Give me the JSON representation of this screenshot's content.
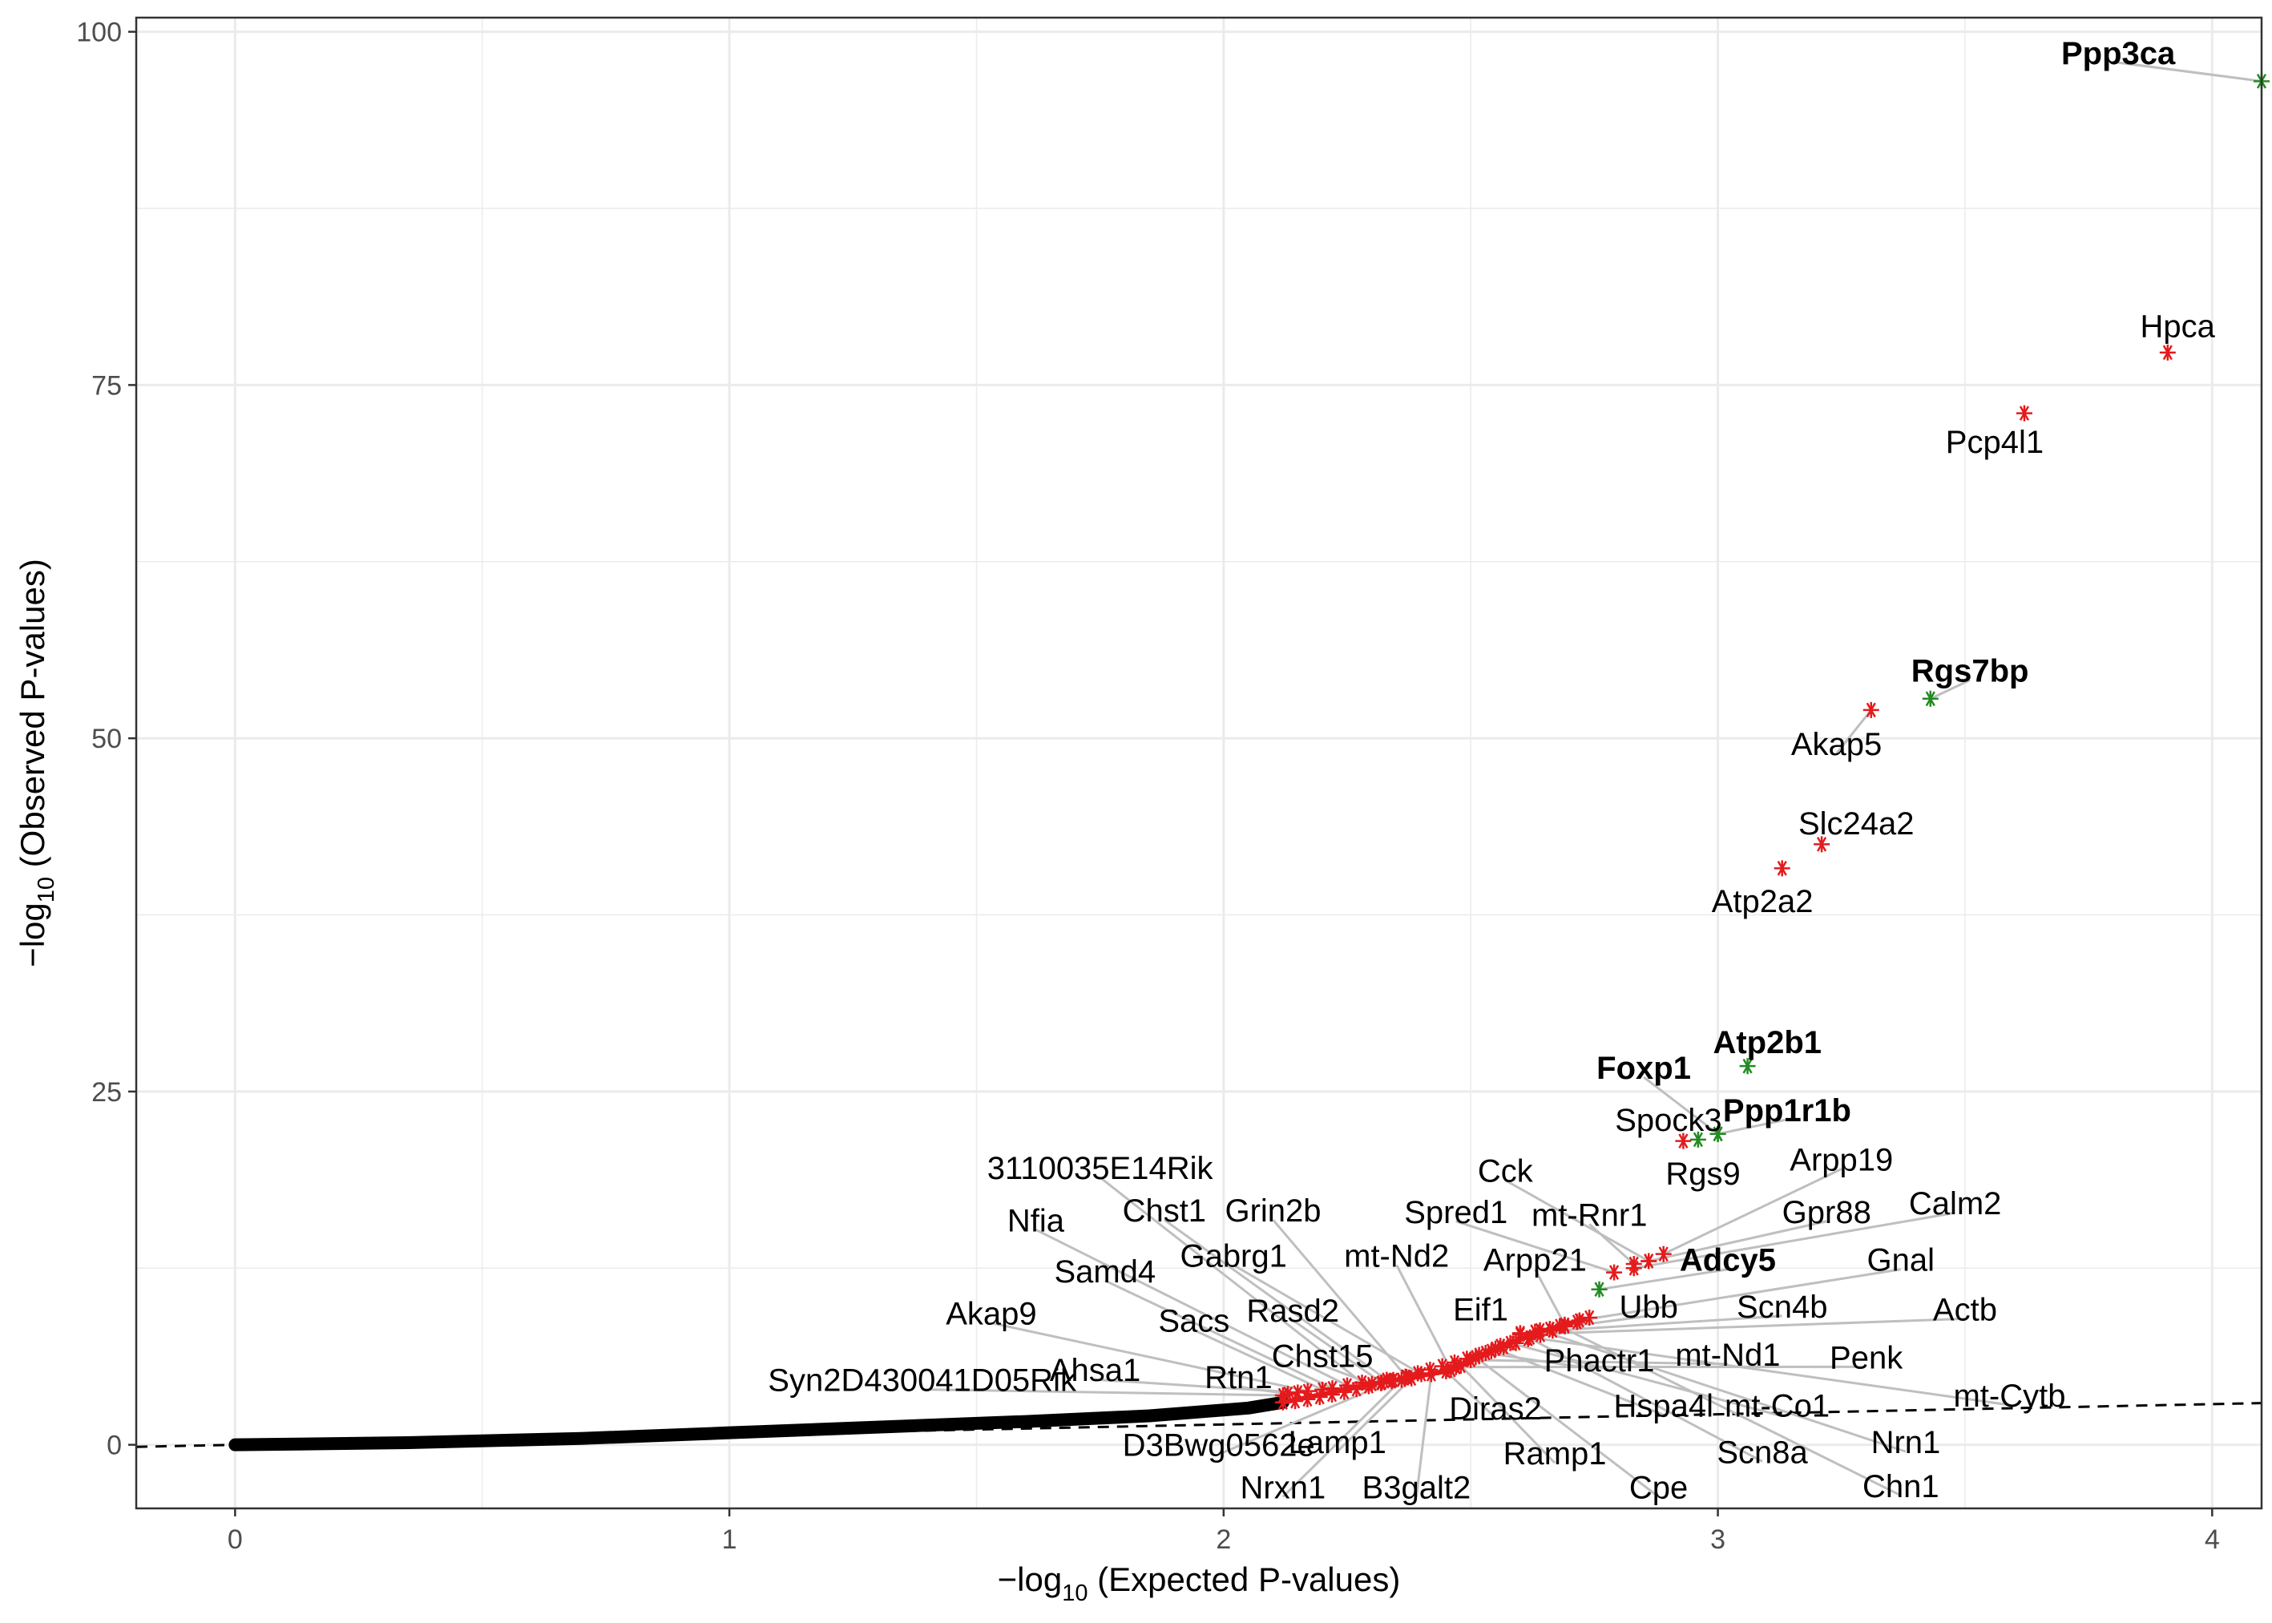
{
  "chart_data": {
    "type": "scatter",
    "title": "",
    "xlabel": {
      "prefix": "−log",
      "sub": "10",
      "suffix": " (Expected P-values)"
    },
    "ylabel": {
      "prefix": "−log",
      "sub": "10",
      "suffix": " (Observed P-values)"
    },
    "xlim": [
      -0.2,
      4.1
    ],
    "ylim": [
      -4.5,
      101
    ],
    "x_ticks": [
      0,
      1,
      2,
      3,
      4
    ],
    "y_ticks": [
      0,
      25,
      50,
      75,
      100
    ],
    "x_tick_labels": [
      "0",
      "1",
      "2",
      "3",
      "4"
    ],
    "y_tick_labels": [
      "0",
      "25",
      "50",
      "75",
      "100"
    ],
    "grid": true,
    "reference_line": {
      "style": "dashed",
      "slope": 0.72,
      "intercept": 0
    },
    "colors": {
      "background_points": "#000000",
      "highlight_points": "#e41a1c",
      "bold_points": "#228b22",
      "gridlines": "#ebebeb",
      "leader_lines": "#bfbfbf",
      "panel_border": "#333333"
    },
    "background_curve": [
      [
        0,
        0
      ],
      [
        0.35,
        0.15
      ],
      [
        0.7,
        0.45
      ],
      [
        1.0,
        0.85
      ],
      [
        1.3,
        1.25
      ],
      [
        1.6,
        1.65
      ],
      [
        1.85,
        2.05
      ],
      [
        2.05,
        2.6
      ],
      [
        2.12,
        3.0
      ]
    ],
    "genes": [
      {
        "label": "Ppp3ca",
        "x": 4.1,
        "y": 96.5,
        "color": "#228b22",
        "bold": true,
        "lx": 3.81,
        "ly": 98.5
      },
      {
        "label": "Hpca",
        "x": 3.91,
        "y": 77.3,
        "color": "#e41a1c",
        "bold": false,
        "lx": 3.93,
        "ly": 79.2
      },
      {
        "label": "Pcp4l1",
        "x": 3.62,
        "y": 73.0,
        "color": "#e41a1c",
        "bold": false,
        "lx": 3.56,
        "ly": 71.0
      },
      {
        "label": "Rgs7bp",
        "x": 3.43,
        "y": 52.8,
        "color": "#228b22",
        "bold": true,
        "lx": 3.51,
        "ly": 54.8
      },
      {
        "label": "Akap5",
        "x": 3.31,
        "y": 52.0,
        "color": "#e41a1c",
        "bold": false,
        "lx": 3.24,
        "ly": 49.6
      },
      {
        "label": "Slc24a2",
        "x": 3.21,
        "y": 42.5,
        "color": "#e41a1c",
        "bold": false,
        "lx": 3.28,
        "ly": 44.0
      },
      {
        "label": "Atp2a2",
        "x": 3.13,
        "y": 40.8,
        "color": "#e41a1c",
        "bold": false,
        "lx": 3.09,
        "ly": 38.5
      },
      {
        "label": "Atp2b1",
        "x": 3.06,
        "y": 26.8,
        "color": "#228b22",
        "bold": true,
        "lx": 3.1,
        "ly": 28.5
      },
      {
        "label": "Foxp1",
        "x": 3.0,
        "y": 22.0,
        "color": "#228b22",
        "bold": true,
        "lx": 2.85,
        "ly": 26.7
      },
      {
        "label": "Ppp1r1b",
        "x": 3.0,
        "y": 22.0,
        "color": "#228b22",
        "bold": true,
        "lx": 3.14,
        "ly": 23.7
      },
      {
        "label": "Spock3",
        "x": 2.93,
        "y": 21.5,
        "color": "#e41a1c",
        "bold": false,
        "lx": 2.9,
        "ly": 23.0
      },
      {
        "label": "Rgs9",
        "x": 2.96,
        "y": 21.6,
        "color": "#228b22",
        "bold": false,
        "lx": 2.97,
        "ly": 19.2
      },
      {
        "label": "Arpp19",
        "x": 2.89,
        "y": 13.5,
        "color": "#e41a1c",
        "bold": false,
        "lx": 3.25,
        "ly": 20.2
      },
      {
        "label": "Cck",
        "x": 2.86,
        "y": 13.0,
        "color": "#e41a1c",
        "bold": false,
        "lx": 2.57,
        "ly": 19.4
      },
      {
        "label": "mt-Rnr1",
        "x": 2.83,
        "y": 12.8,
        "color": "#e41a1c",
        "bold": false,
        "lx": 2.74,
        "ly": 16.3
      },
      {
        "label": "Gpr88",
        "x": 2.86,
        "y": 13.0,
        "color": "#e41a1c",
        "bold": false,
        "lx": 3.22,
        "ly": 16.5
      },
      {
        "label": "Calm2",
        "x": 2.83,
        "y": 12.5,
        "color": "#e41a1c",
        "bold": false,
        "lx": 3.48,
        "ly": 17.1
      },
      {
        "label": "Spred1",
        "x": 2.79,
        "y": 12.2,
        "color": "#e41a1c",
        "bold": false,
        "lx": 2.47,
        "ly": 16.5
      },
      {
        "label": "Adcy5",
        "x": 2.76,
        "y": 11.0,
        "color": "#228b22",
        "bold": true,
        "lx": 3.02,
        "ly": 13.1
      },
      {
        "label": "Gnal",
        "x": 2.72,
        "y": 8.8,
        "color": "#e41a1c",
        "bold": false,
        "lx": 3.37,
        "ly": 13.1
      },
      {
        "label": "Arpp21",
        "x": 2.69,
        "y": 8.5,
        "color": "#e41a1c",
        "bold": false,
        "lx": 2.63,
        "ly": 13.1
      },
      {
        "label": "Ubb",
        "x": 2.66,
        "y": 8.2,
        "color": "#e41a1c",
        "bold": false,
        "lx": 2.86,
        "ly": 9.8
      },
      {
        "label": "Scn4b",
        "x": 2.63,
        "y": 8.0,
        "color": "#e41a1c",
        "bold": false,
        "lx": 3.13,
        "ly": 9.8
      },
      {
        "label": "Actb",
        "x": 2.6,
        "y": 7.8,
        "color": "#e41a1c",
        "bold": false,
        "lx": 3.5,
        "ly": 9.6
      },
      {
        "label": "Eif1",
        "x": 2.56,
        "y": 7.0,
        "color": "#e41a1c",
        "bold": false,
        "lx": 2.52,
        "ly": 9.6
      },
      {
        "label": "Phactr1",
        "x": 2.53,
        "y": 6.5,
        "color": "#e41a1c",
        "bold": false,
        "lx": 2.76,
        "ly": 6.0
      },
      {
        "label": "mt-Nd1",
        "x": 2.5,
        "y": 6.0,
        "color": "#e41a1c",
        "bold": false,
        "lx": 3.02,
        "ly": 6.4
      },
      {
        "label": "Penk",
        "x": 2.47,
        "y": 5.5,
        "color": "#e41a1c",
        "bold": false,
        "lx": 3.3,
        "ly": 6.2
      },
      {
        "label": "mt-Nd2",
        "x": 2.46,
        "y": 5.3,
        "color": "#e41a1c",
        "bold": false,
        "lx": 2.35,
        "ly": 13.4
      },
      {
        "label": "Gabrg1",
        "x": 2.4,
        "y": 5.0,
        "color": "#e41a1c",
        "bold": false,
        "lx": 2.02,
        "ly": 13.4
      },
      {
        "label": "Grin2b",
        "x": 2.37,
        "y": 4.8,
        "color": "#e41a1c",
        "bold": false,
        "lx": 2.1,
        "ly": 16.6
      },
      {
        "label": "Chst1",
        "x": 2.33,
        "y": 4.6,
        "color": "#e41a1c",
        "bold": false,
        "lx": 1.88,
        "ly": 16.6
      },
      {
        "label": "3110035E14Rik",
        "x": 2.28,
        "y": 4.4,
        "color": "#e41a1c",
        "bold": false,
        "lx": 1.75,
        "ly": 19.6
      },
      {
        "label": "Nfia",
        "x": 2.25,
        "y": 4.2,
        "color": "#e41a1c",
        "bold": false,
        "lx": 1.62,
        "ly": 15.9
      },
      {
        "label": "Samd4",
        "x": 2.22,
        "y": 4.0,
        "color": "#e41a1c",
        "bold": false,
        "lx": 1.76,
        "ly": 12.3
      },
      {
        "label": "Rasd2",
        "x": 2.32,
        "y": 4.4,
        "color": "#e41a1c",
        "bold": false,
        "lx": 2.14,
        "ly": 9.5
      },
      {
        "label": "Sacs",
        "x": 2.2,
        "y": 3.9,
        "color": "#e41a1c",
        "bold": false,
        "lx": 1.94,
        "ly": 8.8
      },
      {
        "label": "Akap9",
        "x": 2.17,
        "y": 3.8,
        "color": "#e41a1c",
        "bold": false,
        "lx": 1.53,
        "ly": 9.3
      },
      {
        "label": "Chst15",
        "x": 2.3,
        "y": 4.3,
        "color": "#e41a1c",
        "bold": false,
        "lx": 2.2,
        "ly": 6.3
      },
      {
        "label": "Ahsa1",
        "x": 2.15,
        "y": 3.7,
        "color": "#e41a1c",
        "bold": false,
        "lx": 1.74,
        "ly": 5.3
      },
      {
        "label": "Rtn1",
        "x": 2.13,
        "y": 3.6,
        "color": "#e41a1c",
        "bold": false,
        "lx": 2.03,
        "ly": 4.8
      },
      {
        "label": "Syn2D430041D05Rik",
        "x": 2.12,
        "y": 3.5,
        "color": "#e41a1c",
        "bold": false,
        "lx": 1.39,
        "ly": 4.6
      },
      {
        "label": "Diras2",
        "x": 2.45,
        "y": 5.2,
        "color": "#e41a1c",
        "bold": false,
        "lx": 2.55,
        "ly": 2.6
      },
      {
        "label": "Hspa4l",
        "x": 2.55,
        "y": 6.8,
        "color": "#e41a1c",
        "bold": false,
        "lx": 2.89,
        "ly": 2.8
      },
      {
        "label": "mt-Co1",
        "x": 2.58,
        "y": 7.2,
        "color": "#e41a1c",
        "bold": false,
        "lx": 3.12,
        "ly": 2.8
      },
      {
        "label": "mt-Cytb",
        "x": 2.62,
        "y": 7.6,
        "color": "#e41a1c",
        "bold": false,
        "lx": 3.59,
        "ly": 3.5
      },
      {
        "label": "D3Bwg0562e",
        "x": 2.34,
        "y": 4.5,
        "color": "#e41a1c",
        "bold": false,
        "lx": 1.99,
        "ly": 0.0
      },
      {
        "label": "Lamp1",
        "x": 2.38,
        "y": 4.7,
        "color": "#e41a1c",
        "bold": false,
        "lx": 2.23,
        "ly": 0.2
      },
      {
        "label": "Ramp1",
        "x": 2.48,
        "y": 5.6,
        "color": "#e41a1c",
        "bold": false,
        "lx": 2.67,
        "ly": -0.6
      },
      {
        "label": "Scn8a",
        "x": 2.6,
        "y": 7.9,
        "color": "#e41a1c",
        "bold": false,
        "lx": 3.09,
        "ly": -0.5
      },
      {
        "label": "Nrn1",
        "x": 2.64,
        "y": 8.1,
        "color": "#e41a1c",
        "bold": false,
        "lx": 3.38,
        "ly": 0.2
      },
      {
        "label": "Nrxn1",
        "x": 2.36,
        "y": 4.6,
        "color": "#e41a1c",
        "bold": false,
        "lx": 2.12,
        "ly": -3.0
      },
      {
        "label": "B3galt2",
        "x": 2.42,
        "y": 5.0,
        "color": "#e41a1c",
        "bold": false,
        "lx": 2.39,
        "ly": -3.0
      },
      {
        "label": "Cpe",
        "x": 2.51,
        "y": 6.2,
        "color": "#e41a1c",
        "bold": false,
        "lx": 2.88,
        "ly": -3.0
      },
      {
        "label": "Chn1",
        "x": 2.68,
        "y": 8.4,
        "color": "#e41a1c",
        "bold": false,
        "lx": 3.37,
        "ly": -2.9
      }
    ]
  }
}
